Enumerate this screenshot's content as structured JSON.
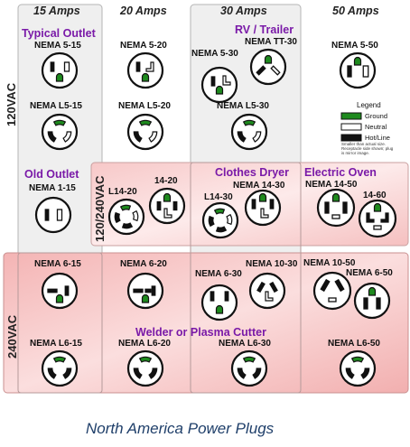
{
  "columns": [
    "15 Amps",
    "20 Amps",
    "30 Amps",
    "50 Amps"
  ],
  "voltage_rows": [
    "120VAC",
    "120/240VAC",
    "240VAC"
  ],
  "categories": {
    "typical_outlet": "Typical Outlet",
    "rv_trailer": "RV / Trailer",
    "old_outlet": "Old Outlet",
    "clothes_dryer": "Clothes Dryer",
    "electric_oven": "Electric Oven",
    "welder": "Welder or Plasma Cutter"
  },
  "plugs": {
    "n5_15": "NEMA 5-15",
    "n5_20": "NEMA 5-20",
    "n5_30": "NEMA 5-30",
    "ntt30": "NEMA TT-30",
    "n5_50": "NEMA 5-50",
    "l5_15": "NEMA L5-15",
    "l5_20": "NEMA L5-20",
    "l5_30": "NEMA L5-30",
    "n1_15": "NEMA 1-15",
    "l14_20": "L14-20",
    "n14_20": "14-20",
    "l14_30": "L14-30",
    "n14_30": "NEMA 14-30",
    "n14_50": "NEMA 14-50",
    "n14_60": "14-60",
    "n6_15": "NEMA 6-15",
    "n6_20": "NEMA 6-20",
    "n6_30": "NEMA 6-30",
    "n10_30": "NEMA 10-30",
    "n10_50": "NEMA 10-50",
    "n6_50": "NEMA 6-50",
    "l6_15": "NEMA L6-15",
    "l6_20": "NEMA L6-20",
    "l6_30": "NEMA L6-30",
    "l6_50": "NEMA L6-50"
  },
  "legend": {
    "title": "Legend",
    "ground": "Ground",
    "neutral": "Neutral",
    "hot": "Hot/Line",
    "note": "Smaller than actual size. Receptacle side shown; plug is mirror image."
  },
  "caption": "North America Power Plugs",
  "colors": {
    "ground": "#1e8a1e",
    "neutral": "#ffffff",
    "hot": "#111111",
    "category_text": "#7a1aa8",
    "caption": "#1f3f6a",
    "band_240": "#f6c2c2",
    "band_split": "#fadcdc",
    "column_gray": "#eeeeee"
  }
}
